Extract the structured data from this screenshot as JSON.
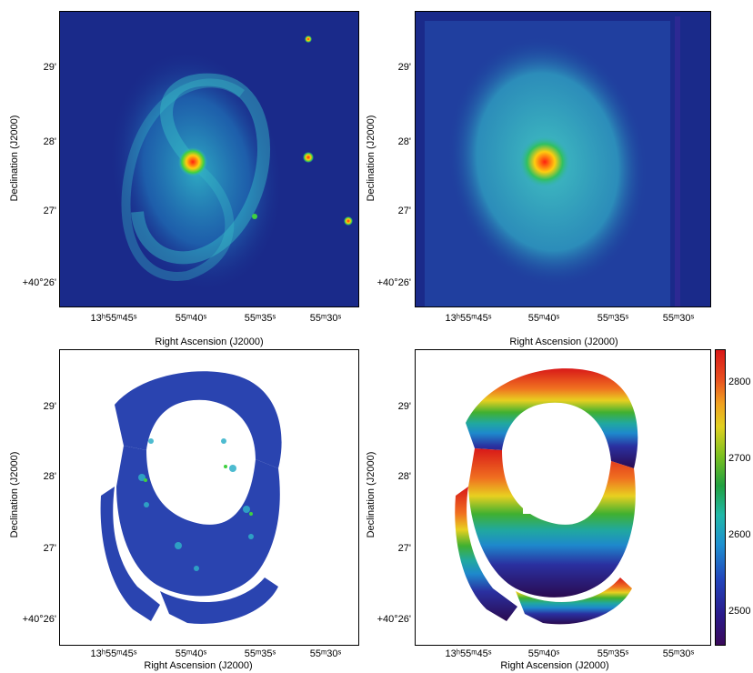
{
  "y_tick_labels": [
    "29'",
    "28'",
    "27'",
    "+40°26'"
  ],
  "x_tick_labels": [
    "13ʰ55ᵐ45ˢ",
    "55ᵐ40ˢ",
    "55ᵐ35ˢ",
    "55ᵐ30ˢ"
  ],
  "x_axis_label": "Right Ascension (J2000)",
  "y_axis_label": "Declination (J2000)",
  "colorbar_ticks": [
    "2800",
    "2700",
    "2600",
    "2500"
  ],
  "colors": {
    "background_blue": "#1a2a8a",
    "galaxy_cyan": "#2fb0c8",
    "core_red": "#e01818",
    "map_blue": "#2a44b0"
  },
  "chart_data": {
    "type": "heatmap",
    "colorbar": {
      "ticks": [
        2500,
        2600,
        2700,
        2800
      ],
      "range": [
        2450,
        2840
      ]
    }
  }
}
